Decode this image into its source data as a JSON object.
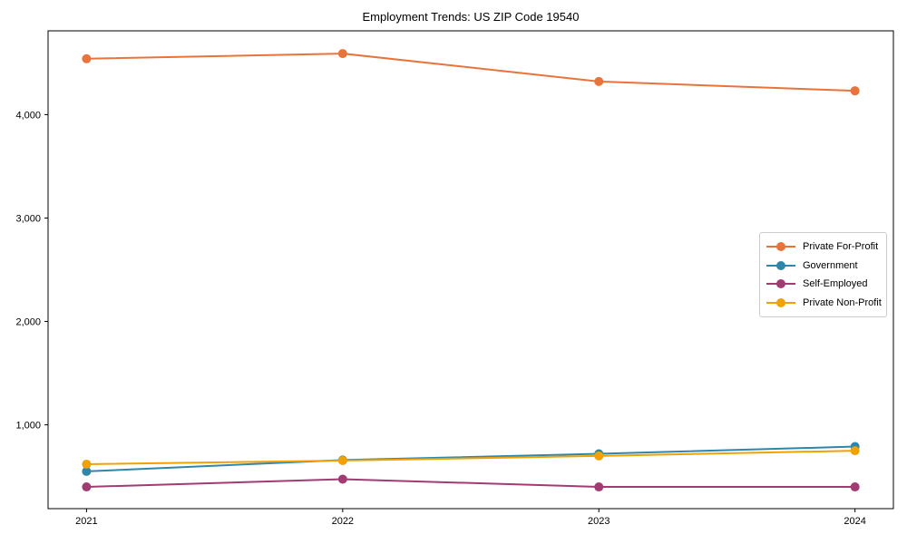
{
  "chart_data": {
    "type": "line",
    "title": "Employment Trends: US ZIP Code 19540",
    "xlabel": "",
    "ylabel": "",
    "x": [
      2021,
      2022,
      2023,
      2024
    ],
    "x_tick_labels": [
      "2021",
      "2022",
      "2023",
      "2024"
    ],
    "y_ticks": [
      1000,
      2000,
      3000,
      4000
    ],
    "y_tick_labels": [
      "1,000",
      "2,000",
      "3,000",
      "4,000"
    ],
    "ylim": [
      190,
      4810
    ],
    "grid": false,
    "legend_position": "center-right",
    "marker": "circle",
    "series": [
      {
        "name": "Private For-Profit",
        "color": "#E8743B",
        "values": [
          4540,
          4590,
          4320,
          4230
        ]
      },
      {
        "name": "Government",
        "color": "#2E86AB",
        "values": [
          550,
          660,
          720,
          790
        ]
      },
      {
        "name": "Self-Employed",
        "color": "#A23B72",
        "values": [
          400,
          475,
          400,
          400
        ]
      },
      {
        "name": "Private Non-Profit",
        "color": "#F0A202",
        "values": [
          620,
          655,
          700,
          750
        ]
      }
    ]
  }
}
